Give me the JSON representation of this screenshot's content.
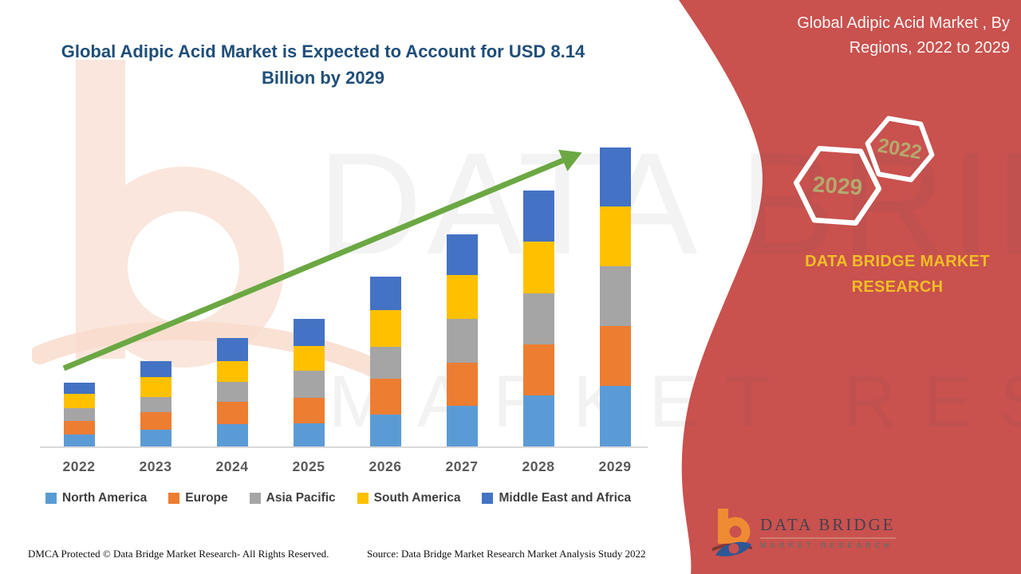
{
  "header": {
    "main_title": "Global Adipic Acid Market is Expected to Account for USD 8.14 Billion by 2029"
  },
  "panel": {
    "title": "Global Adipic Acid Market , By Regions, 2022 to 2029",
    "background_color": "#c9514e",
    "hexagons": [
      {
        "label": "2029"
      },
      {
        "label": "2022"
      }
    ],
    "brand_text": "DATA BRIDGE MARKET RESEARCH",
    "brand_color": "#f0be25",
    "logo": {
      "name": "DATA BRIDGE",
      "sub": "MARKET RESEARCH"
    }
  },
  "watermark": {
    "line1": "DATA BRIDGE",
    "line2": "MARKET RESEARCH"
  },
  "footer": {
    "dmca": "DMCA Protected © Data Bridge Market Research- All Rights Reserved.",
    "source": "Source: Data Bridge Market Research Market Analysis Study 2022"
  },
  "chart_data": {
    "type": "bar",
    "stacked": true,
    "title": "Global Adipic Acid Market is Expected to Account for USD 8.14 Billion by 2029",
    "unit": "USD Billion",
    "categories": [
      "2022",
      "2023",
      "2024",
      "2025",
      "2026",
      "2027",
      "2028",
      "2029"
    ],
    "series": [
      {
        "name": "North America",
        "color": "#5b9bd5",
        "values": [
          0.33,
          0.46,
          0.61,
          0.63,
          0.87,
          1.11,
          1.39,
          1.65
        ]
      },
      {
        "name": "Europe",
        "color": "#ed7d31",
        "values": [
          0.37,
          0.48,
          0.61,
          0.69,
          0.98,
          1.17,
          1.39,
          1.63
        ]
      },
      {
        "name": "Asia Pacific",
        "color": "#a5a5a5",
        "values": [
          0.35,
          0.41,
          0.54,
          0.74,
          0.87,
          1.19,
          1.39,
          1.63
        ]
      },
      {
        "name": "South America",
        "color": "#ffc000",
        "values": [
          0.39,
          0.54,
          0.56,
          0.67,
          0.98,
          1.19,
          1.41,
          1.63
        ]
      },
      {
        "name": "Middle East and Africa",
        "color": "#4472c4",
        "values": [
          0.3,
          0.43,
          0.63,
          0.74,
          0.91,
          1.11,
          1.39,
          1.6
        ]
      }
    ],
    "totals": [
      1.74,
      2.32,
      2.95,
      3.47,
      4.61,
      5.77,
      6.97,
      8.14
    ],
    "ylim": [
      0,
      8.5
    ],
    "grid": false,
    "legend_position": "bottom",
    "trend_arrow": {
      "color": "#6ba843",
      "from": "2022 bar top area",
      "to": "2029 bar top area"
    }
  }
}
